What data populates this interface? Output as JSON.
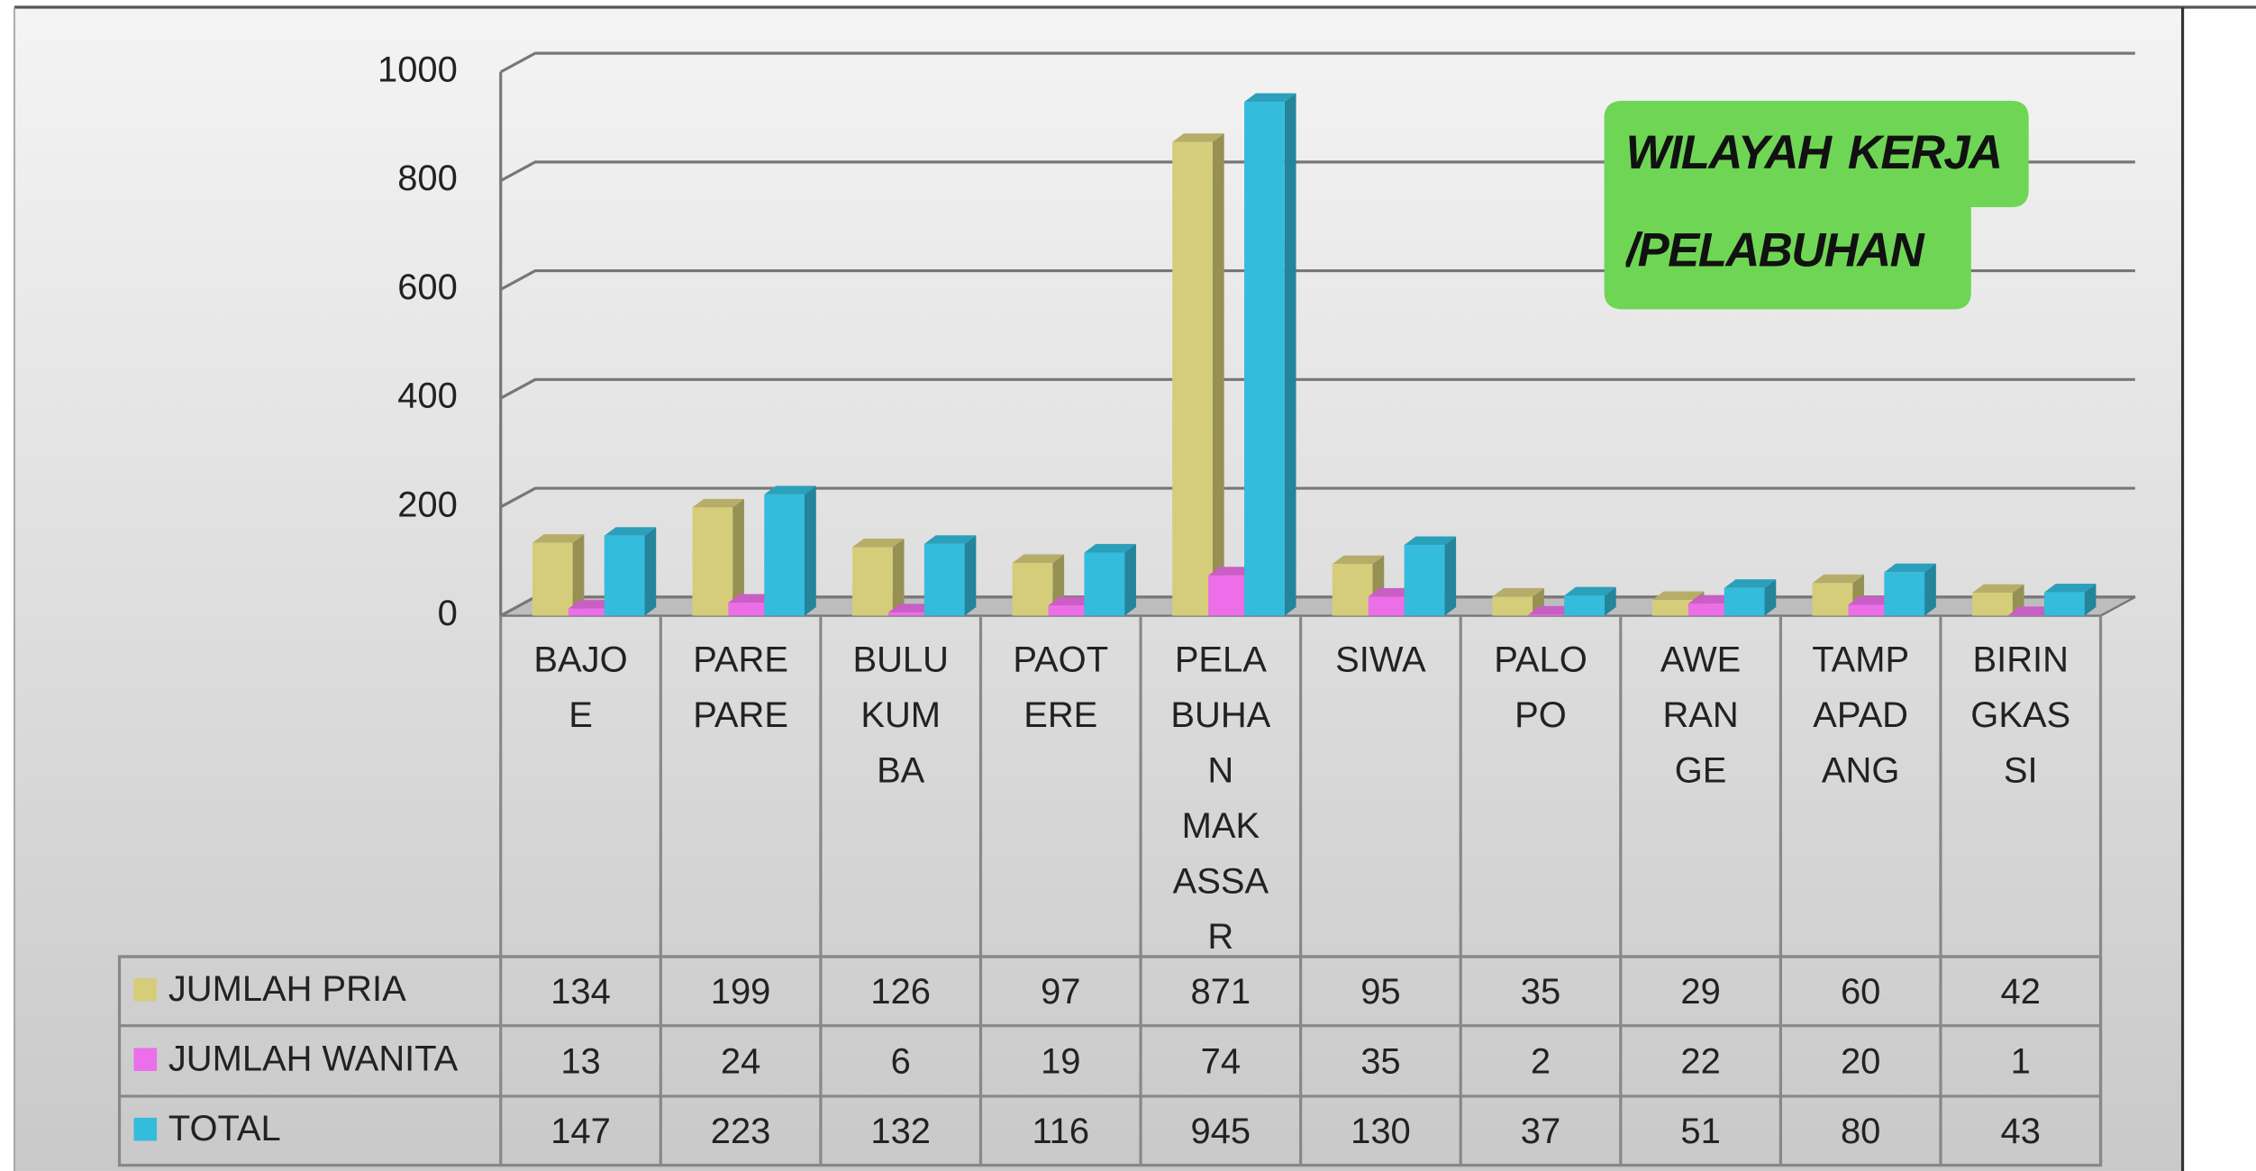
{
  "chart_data": {
    "type": "bar3d",
    "title": "WILAYAH KERJA /PELABUHAN",
    "categories": [
      "BAJOE",
      "PAREPARE",
      "BULUKUMBA",
      "PAOTERE",
      "PELABUHAN MAKASSAR",
      "SIWA",
      "PALOPO",
      "AWERANGE",
      "TAMPAPADANG",
      "BIRINGKASSI"
    ],
    "series": [
      {
        "name": "JUMLAH PRIA",
        "color": "#d6cd7a",
        "values": [
          134,
          199,
          126,
          97,
          871,
          95,
          35,
          29,
          60,
          42
        ]
      },
      {
        "name": "JUMLAH WANITA",
        "color": "#ec6ee8",
        "values": [
          13,
          24,
          6,
          19,
          74,
          35,
          2,
          22,
          20,
          1
        ]
      },
      {
        "name": "TOTAL",
        "color": "#33bcdc",
        "values": [
          147,
          223,
          132,
          116,
          945,
          130,
          37,
          51,
          80,
          43
        ]
      }
    ],
    "ylim": [
      0,
      1000
    ],
    "yticks": [
      0,
      200,
      400,
      600,
      800,
      1000
    ],
    "grid": true
  }
}
